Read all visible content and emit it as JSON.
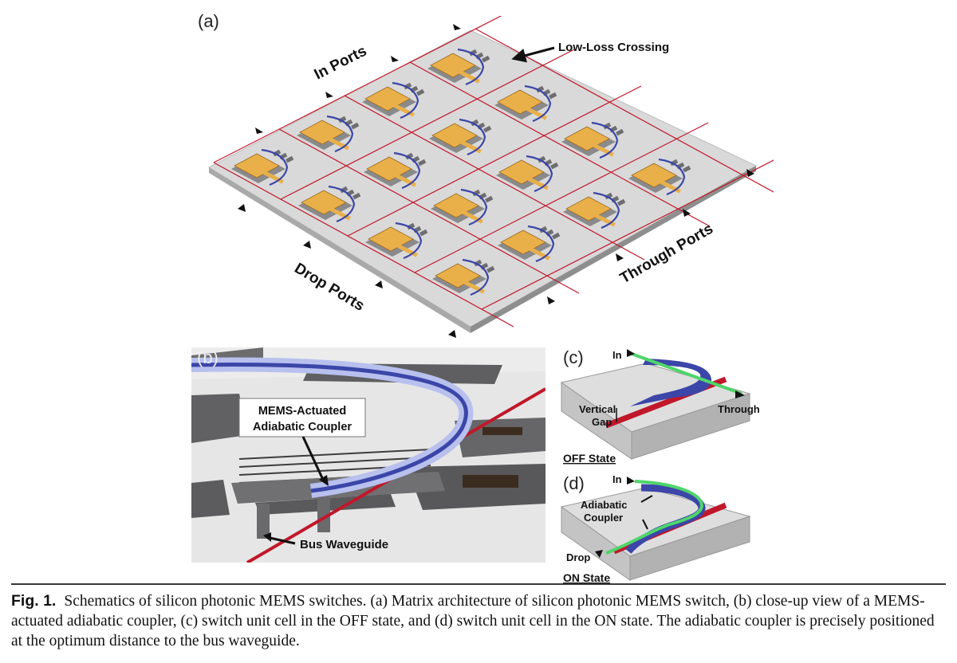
{
  "figure": {
    "panel_a": {
      "letter": "(a)",
      "labels": {
        "in_ports": "In Ports",
        "low_loss_crossing": "Low-Loss Crossing",
        "drop_ports": "Drop Ports",
        "through_ports": "Through Ports"
      }
    },
    "panel_b": {
      "letter": "(b)",
      "labels": {
        "coupler_line1": "MEMS-Actuated",
        "coupler_line2": "Adiabatic Coupler",
        "bus_waveguide": "Bus Waveguide"
      }
    },
    "panel_c": {
      "letter": "(c)",
      "labels": {
        "in": "In",
        "through": "Through",
        "vertical": "Vertical",
        "gap": "Gap",
        "state": "OFF State"
      }
    },
    "panel_d": {
      "letter": "(d)",
      "labels": {
        "in": "In",
        "adiabatic": "Adiabatic",
        "coupler": "Coupler",
        "drop": "Drop",
        "state": "ON State"
      }
    },
    "colors": {
      "substrate": "#d6d6d6",
      "gold_pad": "#e9b04a",
      "mems_gray": "#6e6e70",
      "waveguide_red": "#c0182a",
      "waveguide_blue": "#3b46a8",
      "waveguide_green": "#4fd56a"
    }
  },
  "caption": {
    "label": "Fig. 1.",
    "text": "Schematics of silicon photonic MEMS switches. (a) Matrix architecture of silicon photonic MEMS switch, (b) close-up view of a MEMS-actuated adiabatic coupler, (c) switch unit cell in the OFF state, and (d) switch unit cell in the ON state. The adiabatic coupler is precisely positioned at the optimum distance to the bus waveguide."
  }
}
